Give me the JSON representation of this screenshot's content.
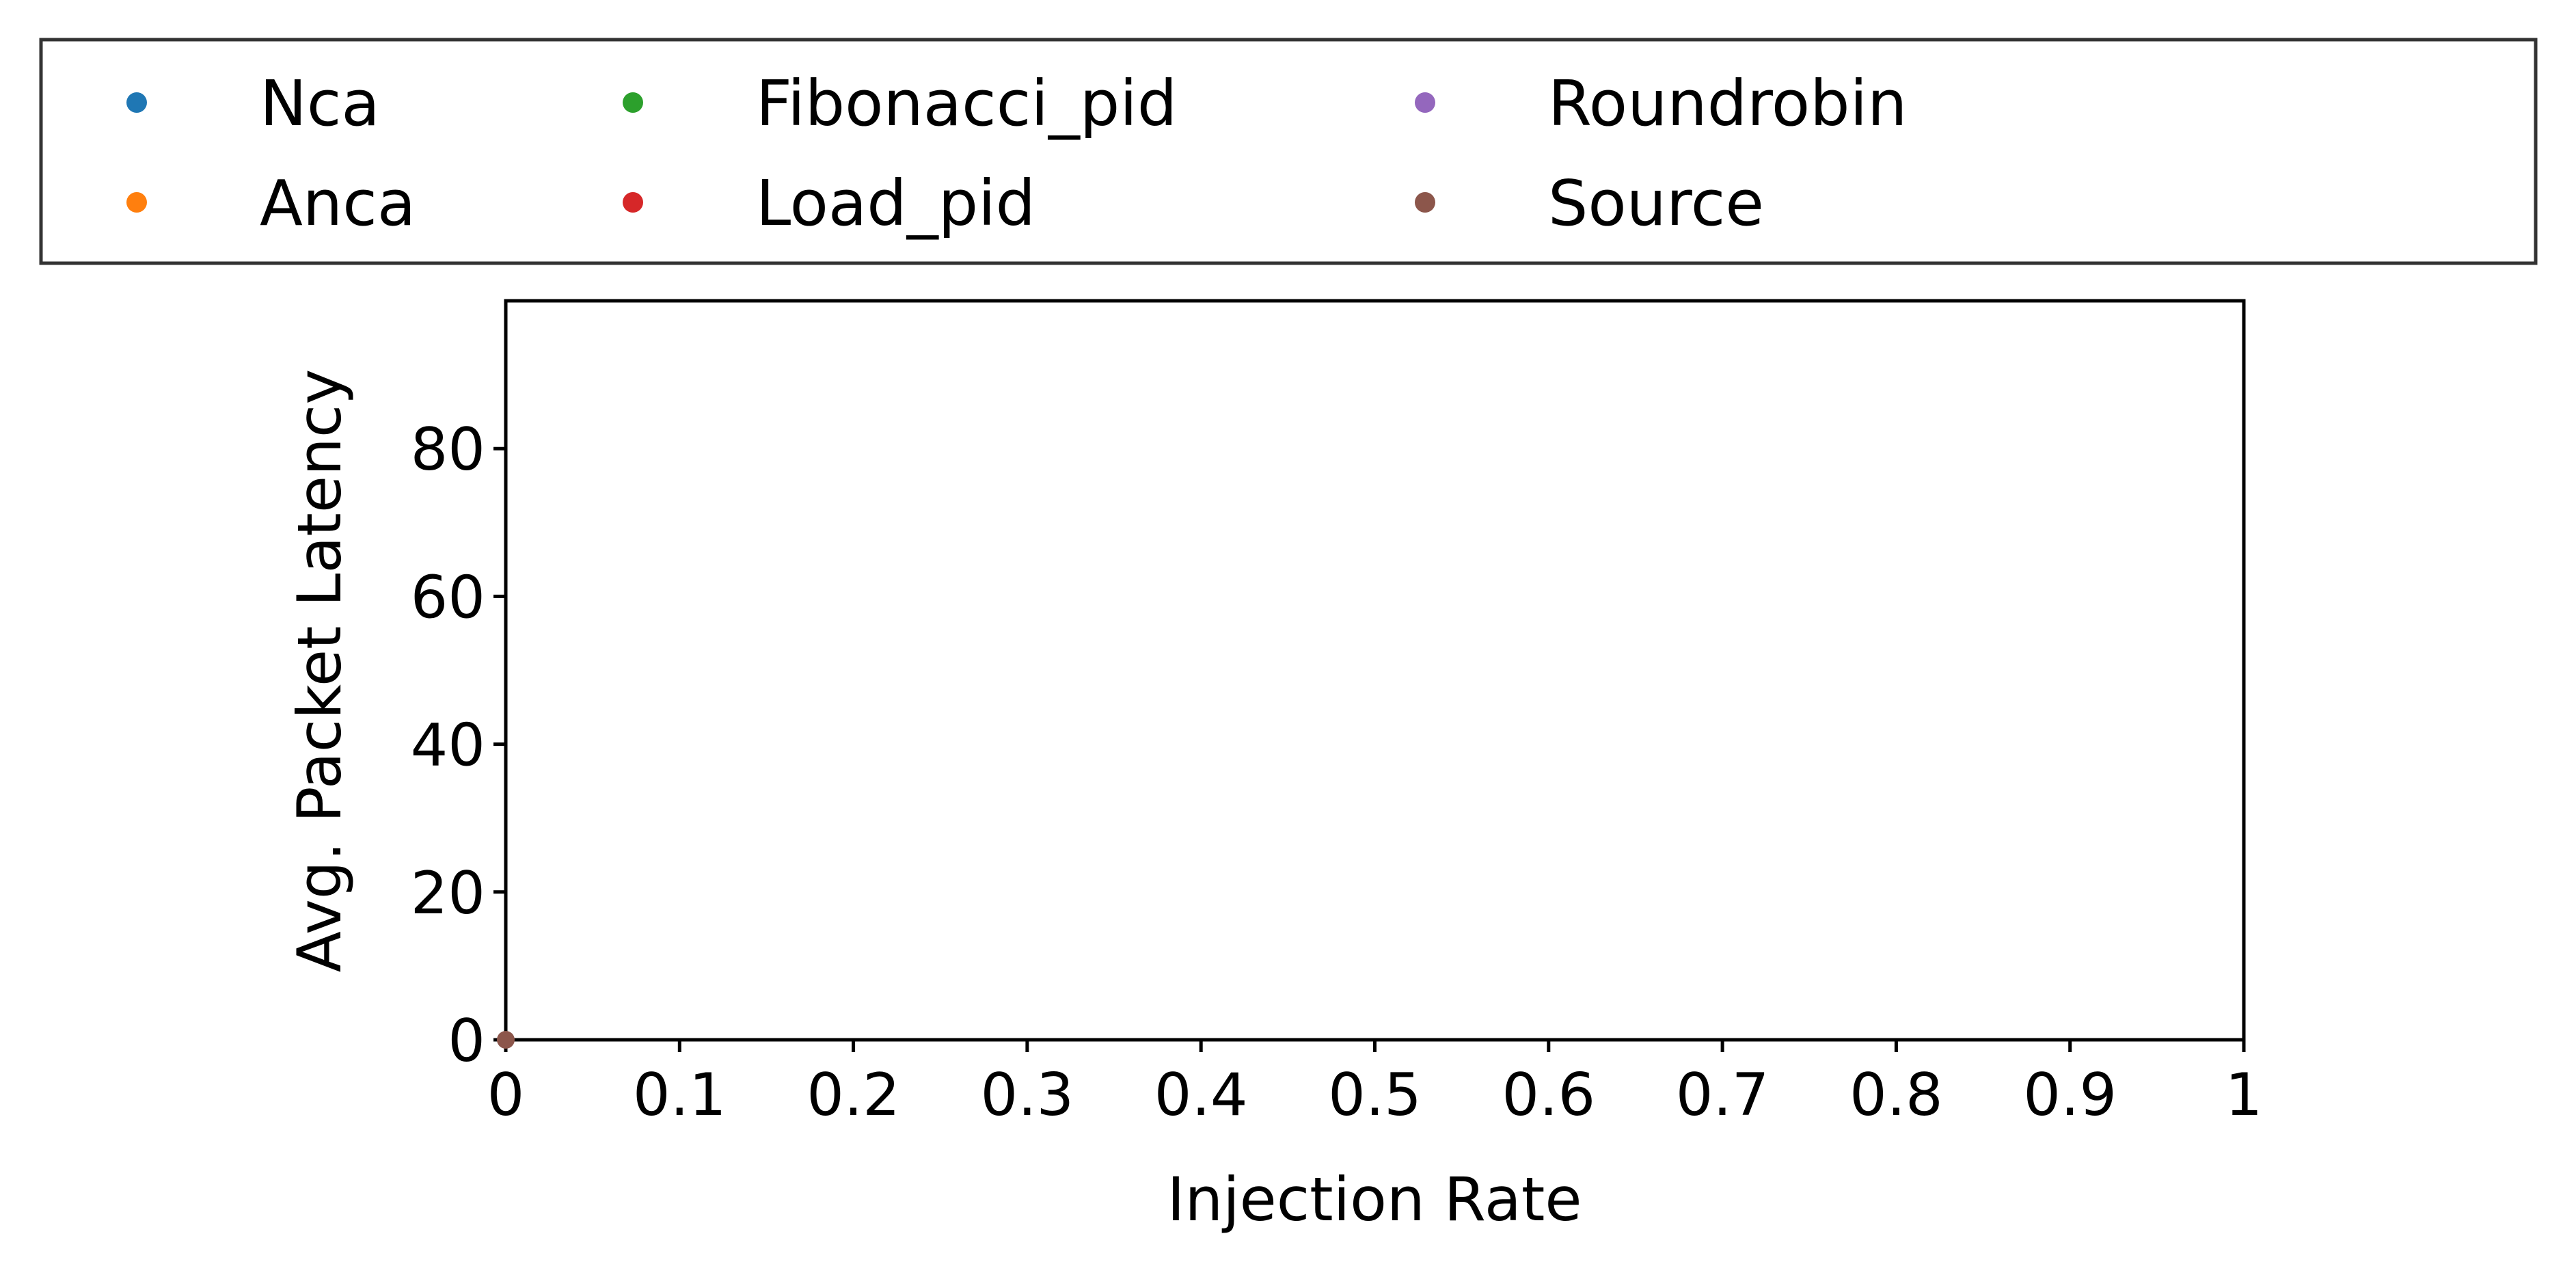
{
  "chart_data": {
    "type": "scatter",
    "xlabel": "Injection Rate",
    "ylabel": "Avg. Packet Latency",
    "xlim": [
      0,
      1
    ],
    "ylim": [
      0,
      100
    ],
    "x_ticks": [
      0,
      0.1,
      0.2,
      0.3,
      0.4,
      0.5,
      0.6,
      0.7,
      0.8,
      0.9,
      1
    ],
    "x_tick_labels": [
      "0",
      "0.1",
      "0.2",
      "0.3",
      "0.4",
      "0.5",
      "0.6",
      "0.7",
      "0.8",
      "0.9",
      "1"
    ],
    "y_ticks": [
      0,
      20,
      40,
      60,
      80
    ],
    "y_tick_labels": [
      "0",
      "20",
      "40",
      "60",
      "80"
    ],
    "grid": false,
    "legend_position": "top, outside the plot",
    "series": [
      {
        "name": "Nca",
        "color": "#1f77b4",
        "x": [],
        "y": []
      },
      {
        "name": "Anca",
        "color": "#ff7f0e",
        "x": [],
        "y": []
      },
      {
        "name": "Fibonacci_pid",
        "color": "#2ca02c",
        "x": [],
        "y": []
      },
      {
        "name": "Load_pid",
        "color": "#d62728",
        "x": [],
        "y": []
      },
      {
        "name": "Roundrobin",
        "color": "#9467bd",
        "x": [],
        "y": []
      },
      {
        "name": "Source",
        "color": "#8c564b",
        "x": [
          0
        ],
        "y": [
          0
        ]
      }
    ]
  }
}
